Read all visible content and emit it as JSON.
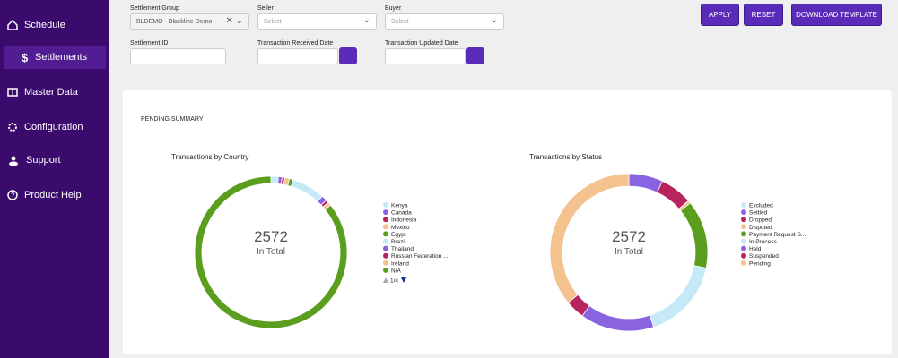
{
  "sidebar": {
    "items": [
      "Schedule",
      "Settlements",
      "Master Data",
      "Configuration",
      "Support",
      "Product Help"
    ]
  },
  "filters": {
    "settlement_group": {
      "label": "Settlement Group",
      "value": "BLDEMO - Blackline Demo"
    },
    "seller": {
      "label": "Seller",
      "placeholder": "Select"
    },
    "buyer": {
      "label": "Buyer",
      "placeholder": "Select"
    },
    "settlement_id": {
      "label": "Settlement ID"
    },
    "received_date": {
      "label": "Transaction Received Date"
    },
    "updated_date": {
      "label": "Transaction Updated Date"
    }
  },
  "buttons": [
    "APPLY",
    "RESET",
    "DOWNLOAD TEMPLATE"
  ],
  "summary": {
    "title": "PENDING SUMMARY"
  },
  "chart_data": [
    {
      "type": "donut",
      "title": "Transactions by Country",
      "total": 2572,
      "total_label": "In Total",
      "categories": [
        "Kenya",
        "Canada",
        "Indonesia",
        "Mexico",
        "Egypt",
        "Brazil",
        "Thailand",
        "Russian Federation ...",
        "Ireland",
        "N/A"
      ],
      "values": [
        40,
        20,
        15,
        25,
        20,
        180,
        30,
        15,
        20,
        2180
      ],
      "colors": [
        "#c6e9f8",
        "#8a63e0",
        "#b8245e",
        "#f4c28f",
        "#5b9e1e",
        "#c6e9f8",
        "#8a63e0",
        "#b8245e",
        "#f4c28f",
        "#5b9e1e"
      ],
      "legend_page": "1/4"
    },
    {
      "type": "donut",
      "title": "Transactions by Status",
      "total": 2572,
      "total_label": "In Total",
      "categories": [
        "Excluded",
        "Settled",
        "Dropped",
        "Disputed",
        "Payment Request S...",
        "In Process",
        "Held",
        "Suspended",
        "Pending"
      ],
      "values": [
        0,
        180,
        170,
        15,
        360,
        430,
        390,
        100,
        927
      ],
      "colors": [
        "#c6e9f8",
        "#8a63e0",
        "#b8245e",
        "#f4c28f",
        "#5b9e1e",
        "#c6e9f8",
        "#8a63e0",
        "#b8245e",
        "#f4c28f"
      ]
    }
  ]
}
